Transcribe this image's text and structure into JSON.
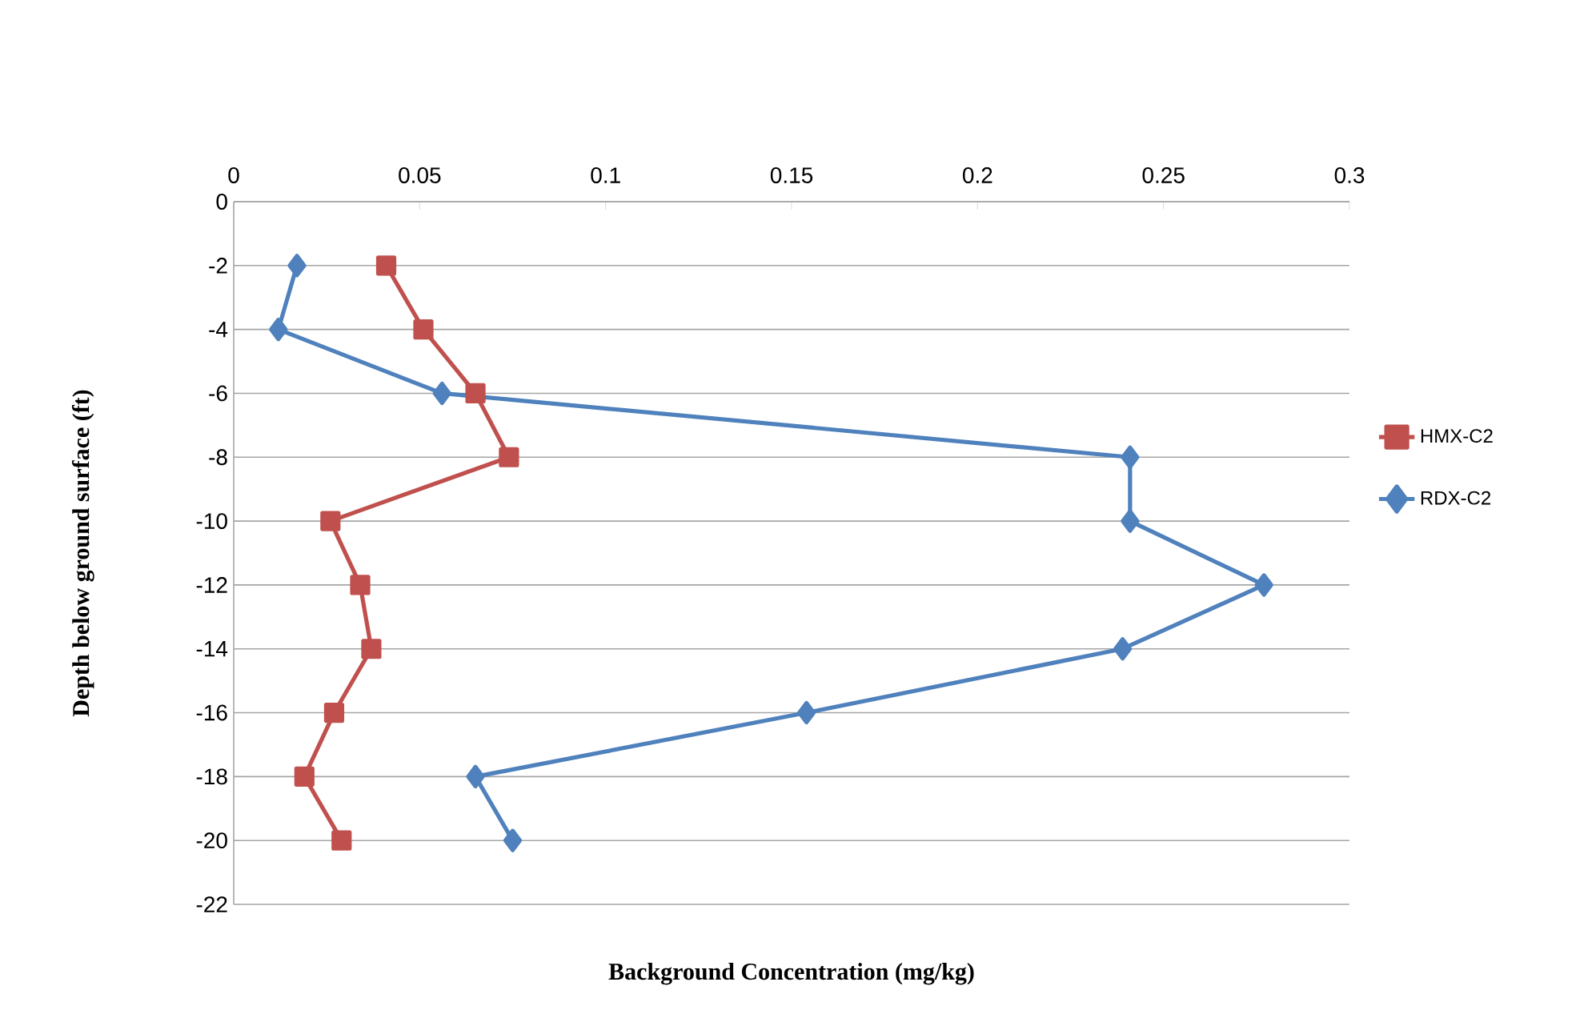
{
  "chart_data": {
    "type": "line",
    "xlabel": "Background Concentration (mg/kg)",
    "ylabel": "Depth below ground surface (ft)",
    "xlim": [
      0,
      0.3
    ],
    "xticks": [
      0,
      0.05,
      0.1,
      0.15,
      0.2,
      0.25,
      0.3
    ],
    "ylim": [
      -22,
      0
    ],
    "yticks": [
      -22,
      -20,
      -18,
      -16,
      -14,
      -12,
      -10,
      -8,
      -6,
      -4,
      -2,
      0
    ],
    "grid": "y",
    "legend": "right",
    "line_style": "solid",
    "series": [
      {
        "name": "HMX-C2",
        "color": "#c0504d",
        "marker": "square",
        "x": [
          0.041,
          0.051,
          0.065,
          0.074,
          0.026,
          0.034,
          0.037,
          0.027,
          0.019,
          0.029
        ],
        "values": [
          -2,
          -4,
          -6,
          -8,
          -10,
          -12,
          -14,
          -16,
          -18,
          -20
        ]
      },
      {
        "name": "RDX-C2",
        "color": "#4f81bd",
        "marker": "diamond",
        "x": [
          0.017,
          0.012,
          0.056,
          0.241,
          0.241,
          0.277,
          0.239,
          0.154,
          0.065,
          0.075
        ],
        "values": [
          -2,
          -4,
          -6,
          -8,
          -10,
          -12,
          -14,
          -16,
          -18,
          -20
        ]
      }
    ]
  }
}
